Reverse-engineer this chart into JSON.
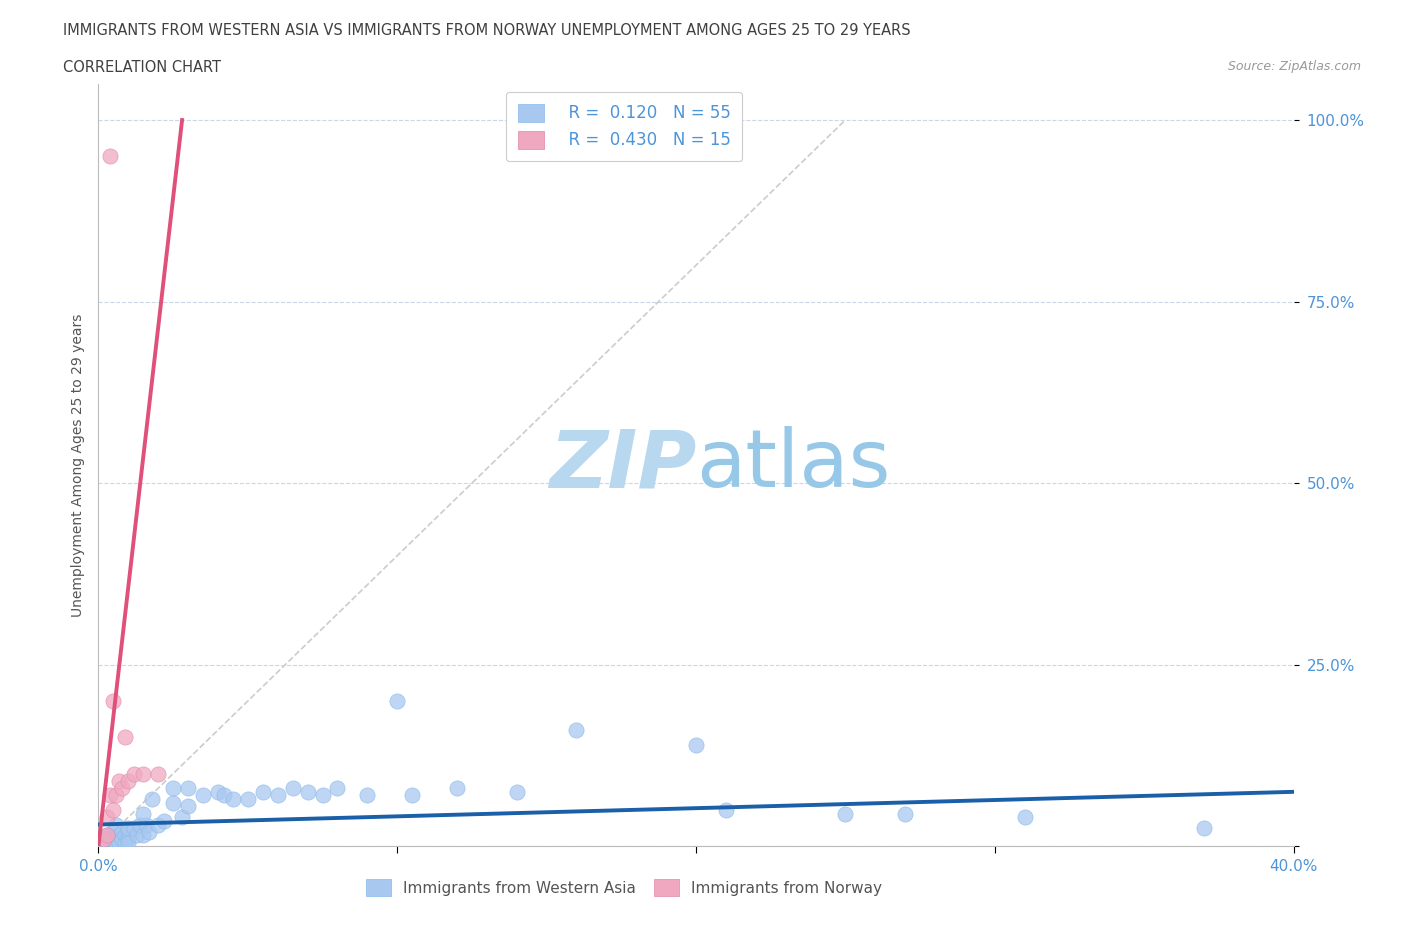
{
  "title_line1": "IMMIGRANTS FROM WESTERN ASIA VS IMMIGRANTS FROM NORWAY UNEMPLOYMENT AMONG AGES 25 TO 29 YEARS",
  "title_line2": "CORRELATION CHART",
  "source_text": "Source: ZipAtlas.com",
  "ylabel": "Unemployment Among Ages 25 to 29 years",
  "xmin": 0.0,
  "xmax": 0.4,
  "ymin": 0.0,
  "ymax": 1.05,
  "yticks": [
    0.0,
    0.25,
    0.5,
    0.75,
    1.0
  ],
  "ytick_labels": [
    "",
    "25.0%",
    "50.0%",
    "75.0%",
    "100.0%"
  ],
  "xticks": [
    0.0,
    0.1,
    0.2,
    0.3,
    0.4
  ],
  "xtick_labels": [
    "0.0%",
    "",
    "",
    "",
    "40.0%"
  ],
  "blue_color": "#a8c8f0",
  "pink_color": "#f0a8c0",
  "blue_line_color": "#1a5fa8",
  "pink_line_color": "#e05078",
  "diag_line_color": "#cccccc",
  "legend_R1": "R =  0.120",
  "legend_N1": "N = 55",
  "legend_R2": "R =  0.430",
  "legend_N2": "N = 15",
  "legend_label1": "Immigrants from Western Asia",
  "legend_label2": "Immigrants from Norway",
  "watermark_zip": "ZIP",
  "watermark_atlas": "atlas",
  "watermark_color": "#cce4f5",
  "axis_color": "#4d94d9",
  "title_color": "#404040",
  "blue_scatter_x": [
    0.002,
    0.003,
    0.004,
    0.005,
    0.005,
    0.006,
    0.006,
    0.007,
    0.007,
    0.008,
    0.008,
    0.009,
    0.009,
    0.01,
    0.01,
    0.01,
    0.01,
    0.012,
    0.013,
    0.014,
    0.015,
    0.016,
    0.017,
    0.018,
    0.02,
    0.022,
    0.025,
    0.025,
    0.028,
    0.03,
    0.03,
    0.035,
    0.04,
    0.042,
    0.045,
    0.05,
    0.055,
    0.06,
    0.065,
    0.07,
    0.075,
    0.08,
    0.09,
    0.1,
    0.105,
    0.12,
    0.14,
    0.16,
    0.2,
    0.21,
    0.25,
    0.27,
    0.31,
    0.37,
    0.015
  ],
  "blue_scatter_y": [
    0.01,
    0.015,
    0.01,
    0.02,
    0.01,
    0.03,
    0.005,
    0.015,
    0.005,
    0.02,
    0.01,
    0.015,
    0.005,
    0.02,
    0.01,
    0.025,
    0.005,
    0.025,
    0.015,
    0.03,
    0.015,
    0.03,
    0.02,
    0.065,
    0.03,
    0.035,
    0.06,
    0.08,
    0.04,
    0.055,
    0.08,
    0.07,
    0.075,
    0.07,
    0.065,
    0.065,
    0.075,
    0.07,
    0.08,
    0.075,
    0.07,
    0.08,
    0.07,
    0.2,
    0.07,
    0.08,
    0.075,
    0.16,
    0.14,
    0.05,
    0.045,
    0.045,
    0.04,
    0.025,
    0.045
  ],
  "pink_scatter_x": [
    0.002,
    0.003,
    0.003,
    0.004,
    0.005,
    0.005,
    0.006,
    0.007,
    0.008,
    0.009,
    0.01,
    0.012,
    0.015,
    0.02,
    0.004
  ],
  "pink_scatter_y": [
    0.01,
    0.015,
    0.04,
    0.07,
    0.05,
    0.2,
    0.07,
    0.09,
    0.08,
    0.15,
    0.09,
    0.1,
    0.1,
    0.1,
    0.95
  ],
  "blue_trend_x": [
    0.0,
    0.4
  ],
  "blue_trend_y": [
    0.03,
    0.075
  ],
  "pink_trend_x": [
    0.0,
    0.028
  ],
  "pink_trend_y": [
    0.0,
    1.0
  ],
  "diag_trend_x": [
    0.0,
    0.25
  ],
  "diag_trend_y": [
    0.0,
    1.0
  ]
}
